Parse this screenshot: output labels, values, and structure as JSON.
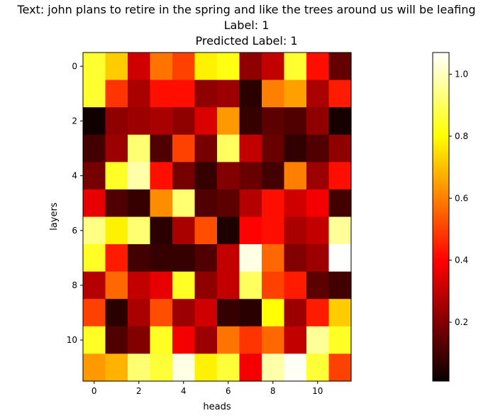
{
  "chart_data": {
    "type": "heatmap",
    "title_lines": [
      "Text: john plans to retire in the spring and like the trees around us will be leafing",
      "Label: 1",
      "Predicted Label: 1"
    ],
    "xlabel": "heads",
    "ylabel": "layers",
    "x_ticks": [
      0,
      2,
      4,
      6,
      8,
      10
    ],
    "y_ticks": [
      0,
      2,
      4,
      6,
      8,
      10
    ],
    "colormap": "hot",
    "colorbar_range": [
      0.01,
      1.07
    ],
    "colorbar_ticks": [
      "0.2",
      "0.4",
      "0.6",
      "0.8",
      "1.0"
    ],
    "colorbar_tick_values": [
      0.2,
      0.4,
      0.6,
      0.8,
      1.0
    ],
    "values": [
      [
        0.85,
        0.72,
        0.32,
        0.58,
        0.5,
        0.78,
        0.82,
        0.22,
        0.3,
        0.85,
        0.42,
        0.15
      ],
      [
        0.85,
        0.48,
        0.26,
        0.42,
        0.42,
        0.22,
        0.24,
        0.06,
        0.6,
        0.65,
        0.26,
        0.44
      ],
      [
        0.02,
        0.22,
        0.24,
        0.26,
        0.22,
        0.34,
        0.64,
        0.08,
        0.14,
        0.12,
        0.22,
        0.03
      ],
      [
        0.1,
        0.24,
        0.92,
        0.12,
        0.5,
        0.18,
        0.9,
        0.3,
        0.16,
        0.07,
        0.12,
        0.22
      ],
      [
        0.18,
        0.84,
        0.98,
        0.42,
        0.18,
        0.08,
        0.2,
        0.16,
        0.1,
        0.6,
        0.24,
        0.42
      ],
      [
        0.36,
        0.12,
        0.08,
        0.62,
        0.92,
        0.12,
        0.14,
        0.28,
        0.42,
        0.32,
        0.38,
        0.1
      ],
      [
        0.94,
        0.78,
        0.92,
        0.06,
        0.26,
        0.52,
        0.04,
        0.4,
        0.42,
        0.26,
        0.3,
        0.96
      ],
      [
        0.84,
        0.44,
        0.1,
        0.08,
        0.08,
        0.12,
        0.3,
        1.04,
        0.56,
        0.2,
        0.24,
        1.07
      ],
      [
        0.28,
        0.56,
        0.3,
        0.36,
        0.84,
        0.22,
        0.3,
        0.9,
        0.5,
        0.44,
        0.14,
        0.1
      ],
      [
        0.5,
        0.06,
        0.26,
        0.52,
        0.24,
        0.32,
        0.08,
        0.06,
        0.8,
        0.24,
        0.44,
        0.72
      ],
      [
        0.84,
        0.12,
        0.2,
        0.84,
        0.38,
        0.24,
        0.58,
        0.48,
        0.56,
        0.3,
        0.96,
        0.84
      ],
      [
        0.64,
        0.68,
        0.92,
        0.86,
        1.04,
        0.78,
        0.86,
        0.38,
        0.98,
        1.06,
        0.86,
        0.5
      ]
    ]
  }
}
